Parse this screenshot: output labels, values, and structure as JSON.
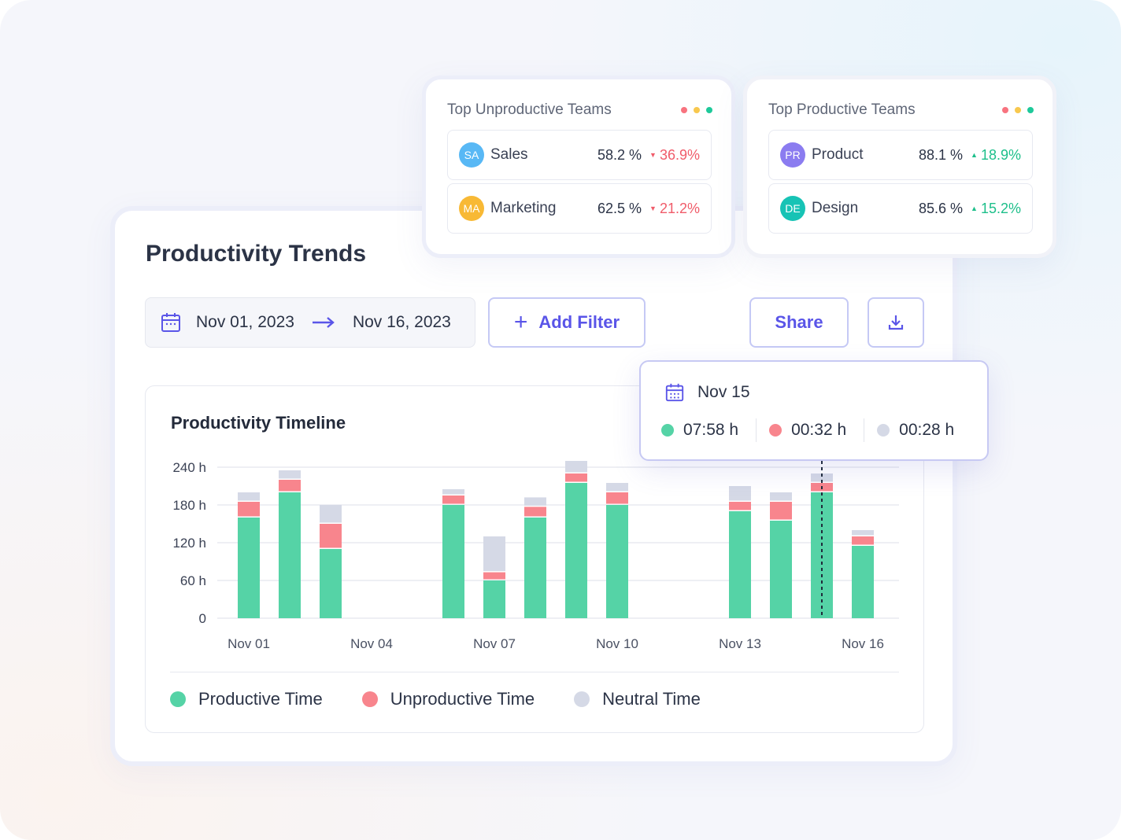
{
  "page": {
    "title": "Productivity Trends",
    "date_range": {
      "start": "Nov 01, 2023",
      "end": "Nov 16, 2023",
      "icon": "calendar-icon"
    },
    "buttons": {
      "add_filter": "Add Filter",
      "share": "Share",
      "download_icon": "download-icon"
    }
  },
  "unproductive_teams": {
    "title": "Top Unproductive Teams",
    "teams": [
      {
        "initials": "SA",
        "name": "Sales",
        "percent": "58.2 %",
        "change": "36.9%",
        "color": "#58b8f5"
      },
      {
        "initials": "MA",
        "name": "Marketing",
        "percent": "62.5 %",
        "change": "21.2%",
        "color": "#f8b935"
      }
    ]
  },
  "productive_teams": {
    "title": "Top Productive Teams",
    "teams": [
      {
        "initials": "PR",
        "name": "Product",
        "percent": "88.1 %",
        "change": "18.9%",
        "color": "#8b7cf0"
      },
      {
        "initials": "DE",
        "name": "Design",
        "percent": "85.6 %",
        "change": "15.2%",
        "color": "#17c3b5"
      }
    ]
  },
  "tooltip": {
    "date": "Nov 15",
    "productive": "07:58 h",
    "unproductive": "00:32 h",
    "neutral": "00:28 h"
  },
  "colors": {
    "productive": "#55d3a6",
    "unproductive": "#f8858d",
    "neutral": "#d5d9e6",
    "accent": "#5a55e8",
    "dot_red": "#f8737f",
    "dot_yellow": "#f8c84e",
    "dot_green": "#1ec99a"
  },
  "chart_data": {
    "type": "bar",
    "stacked": true,
    "title": "Productivity Timeline",
    "categories": [
      "Nov 01",
      "Nov 02",
      "Nov 03",
      "Nov 04",
      "Nov 05",
      "Nov 06",
      "Nov 07",
      "Nov 08",
      "Nov 09",
      "Nov 10",
      "Nov 11",
      "Nov 12",
      "Nov 13",
      "Nov 14",
      "Nov 15",
      "Nov 16"
    ],
    "x_tick_labels": [
      "Nov 01",
      "Nov 04",
      "Nov 07",
      "Nov 10",
      "Nov 13",
      "Nov 16"
    ],
    "y_tick_labels": [
      "0",
      "60 h",
      "120 h",
      "180 h",
      "240 h"
    ],
    "ylim": [
      0,
      240
    ],
    "highlight_category": "Nov 15",
    "series": [
      {
        "name": "Productive Time",
        "values": [
          160,
          200,
          110,
          0,
          0,
          180,
          60,
          160,
          215,
          180,
          0,
          0,
          170,
          155,
          200,
          115
        ]
      },
      {
        "name": "Unproductive Time",
        "values": [
          25,
          20,
          40,
          0,
          0,
          15,
          13,
          17,
          15,
          20,
          0,
          0,
          15,
          30,
          15,
          15
        ]
      },
      {
        "name": "Neutral Time",
        "values": [
          15,
          15,
          30,
          0,
          0,
          10,
          57,
          15,
          20,
          15,
          0,
          0,
          25,
          15,
          15,
          10
        ]
      }
    ]
  }
}
